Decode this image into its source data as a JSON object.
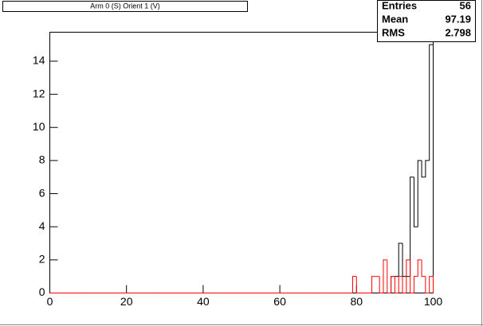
{
  "chart_data": {
    "type": "histogram",
    "title": "Arm 0 (S) Orient 1 (V)",
    "stats": [
      {
        "label": "Entries",
        "value": 56
      },
      {
        "label": "Mean",
        "value": 97.19
      },
      {
        "label": "RMS",
        "value": 2.798
      }
    ],
    "bins": [
      0,
      1,
      2,
      3,
      4,
      5,
      6,
      7,
      8,
      9,
      10,
      11,
      12,
      13,
      14,
      15,
      16,
      17,
      18,
      19,
      20,
      21,
      22,
      23,
      24,
      25,
      26,
      27,
      28,
      29,
      30,
      31,
      32,
      33,
      34,
      35,
      36,
      37,
      38,
      39,
      40,
      41,
      42,
      43,
      44,
      45,
      46,
      47,
      48,
      49,
      50,
      51,
      52,
      53,
      54,
      55,
      56,
      57,
      58,
      59,
      60,
      61,
      62,
      63,
      64,
      65,
      66,
      67,
      68,
      69,
      70,
      71,
      72,
      73,
      74,
      75,
      76,
      77,
      78,
      79,
      80,
      81,
      82,
      83,
      84,
      85,
      86,
      87,
      88,
      89,
      90,
      91,
      92,
      93,
      94,
      95,
      96,
      97,
      98,
      99,
      100
    ],
    "series": [
      {
        "color": "#000000",
        "values": [
          0,
          0,
          0,
          0,
          0,
          0,
          0,
          0,
          0,
          0,
          0,
          0,
          0,
          0,
          0,
          0,
          0,
          0,
          0,
          0,
          0,
          0,
          0,
          0,
          0,
          0,
          0,
          0,
          0,
          0,
          0,
          0,
          0,
          0,
          0,
          0,
          0,
          0,
          0,
          0,
          0,
          0,
          0,
          0,
          0,
          0,
          0,
          0,
          0,
          0,
          0,
          0,
          0,
          0,
          0,
          0,
          0,
          0,
          0,
          0,
          0,
          0,
          0,
          0,
          0,
          0,
          0,
          0,
          0,
          0,
          0,
          0,
          0,
          0,
          0,
          0,
          0,
          0,
          0,
          0,
          0,
          0,
          0,
          0,
          0,
          0,
          0,
          0,
          0,
          1,
          1,
          3,
          1,
          1,
          7,
          4,
          8,
          7,
          8,
          15
        ]
      },
      {
        "color": "#ff0000",
        "values": [
          0,
          0,
          0,
          0,
          0,
          0,
          0,
          0,
          0,
          0,
          0,
          0,
          0,
          0,
          0,
          0,
          0,
          0,
          0,
          0,
          0,
          0,
          0,
          0,
          0,
          0,
          0,
          0,
          0,
          0,
          0,
          0,
          0,
          0,
          0,
          0,
          0,
          0,
          0,
          0,
          0,
          0,
          0,
          0,
          0,
          0,
          0,
          0,
          0,
          0,
          0,
          0,
          0,
          0,
          0,
          0,
          0,
          0,
          0,
          0,
          0,
          0,
          0,
          0,
          0,
          0,
          0,
          0,
          0,
          0,
          0,
          0,
          0,
          0,
          0,
          0,
          0,
          0,
          0,
          1,
          0,
          0,
          0,
          0,
          1,
          1,
          0,
          2,
          0,
          1,
          0,
          1,
          0,
          2,
          0,
          1,
          2,
          1,
          0,
          1
        ]
      }
    ],
    "xlim": [
      0,
      100
    ],
    "xticks": [
      0,
      20,
      40,
      60,
      80,
      100
    ],
    "ylim": [
      0,
      15.75
    ],
    "yticks": [
      0,
      2,
      4,
      6,
      8,
      10,
      12,
      14
    ]
  }
}
